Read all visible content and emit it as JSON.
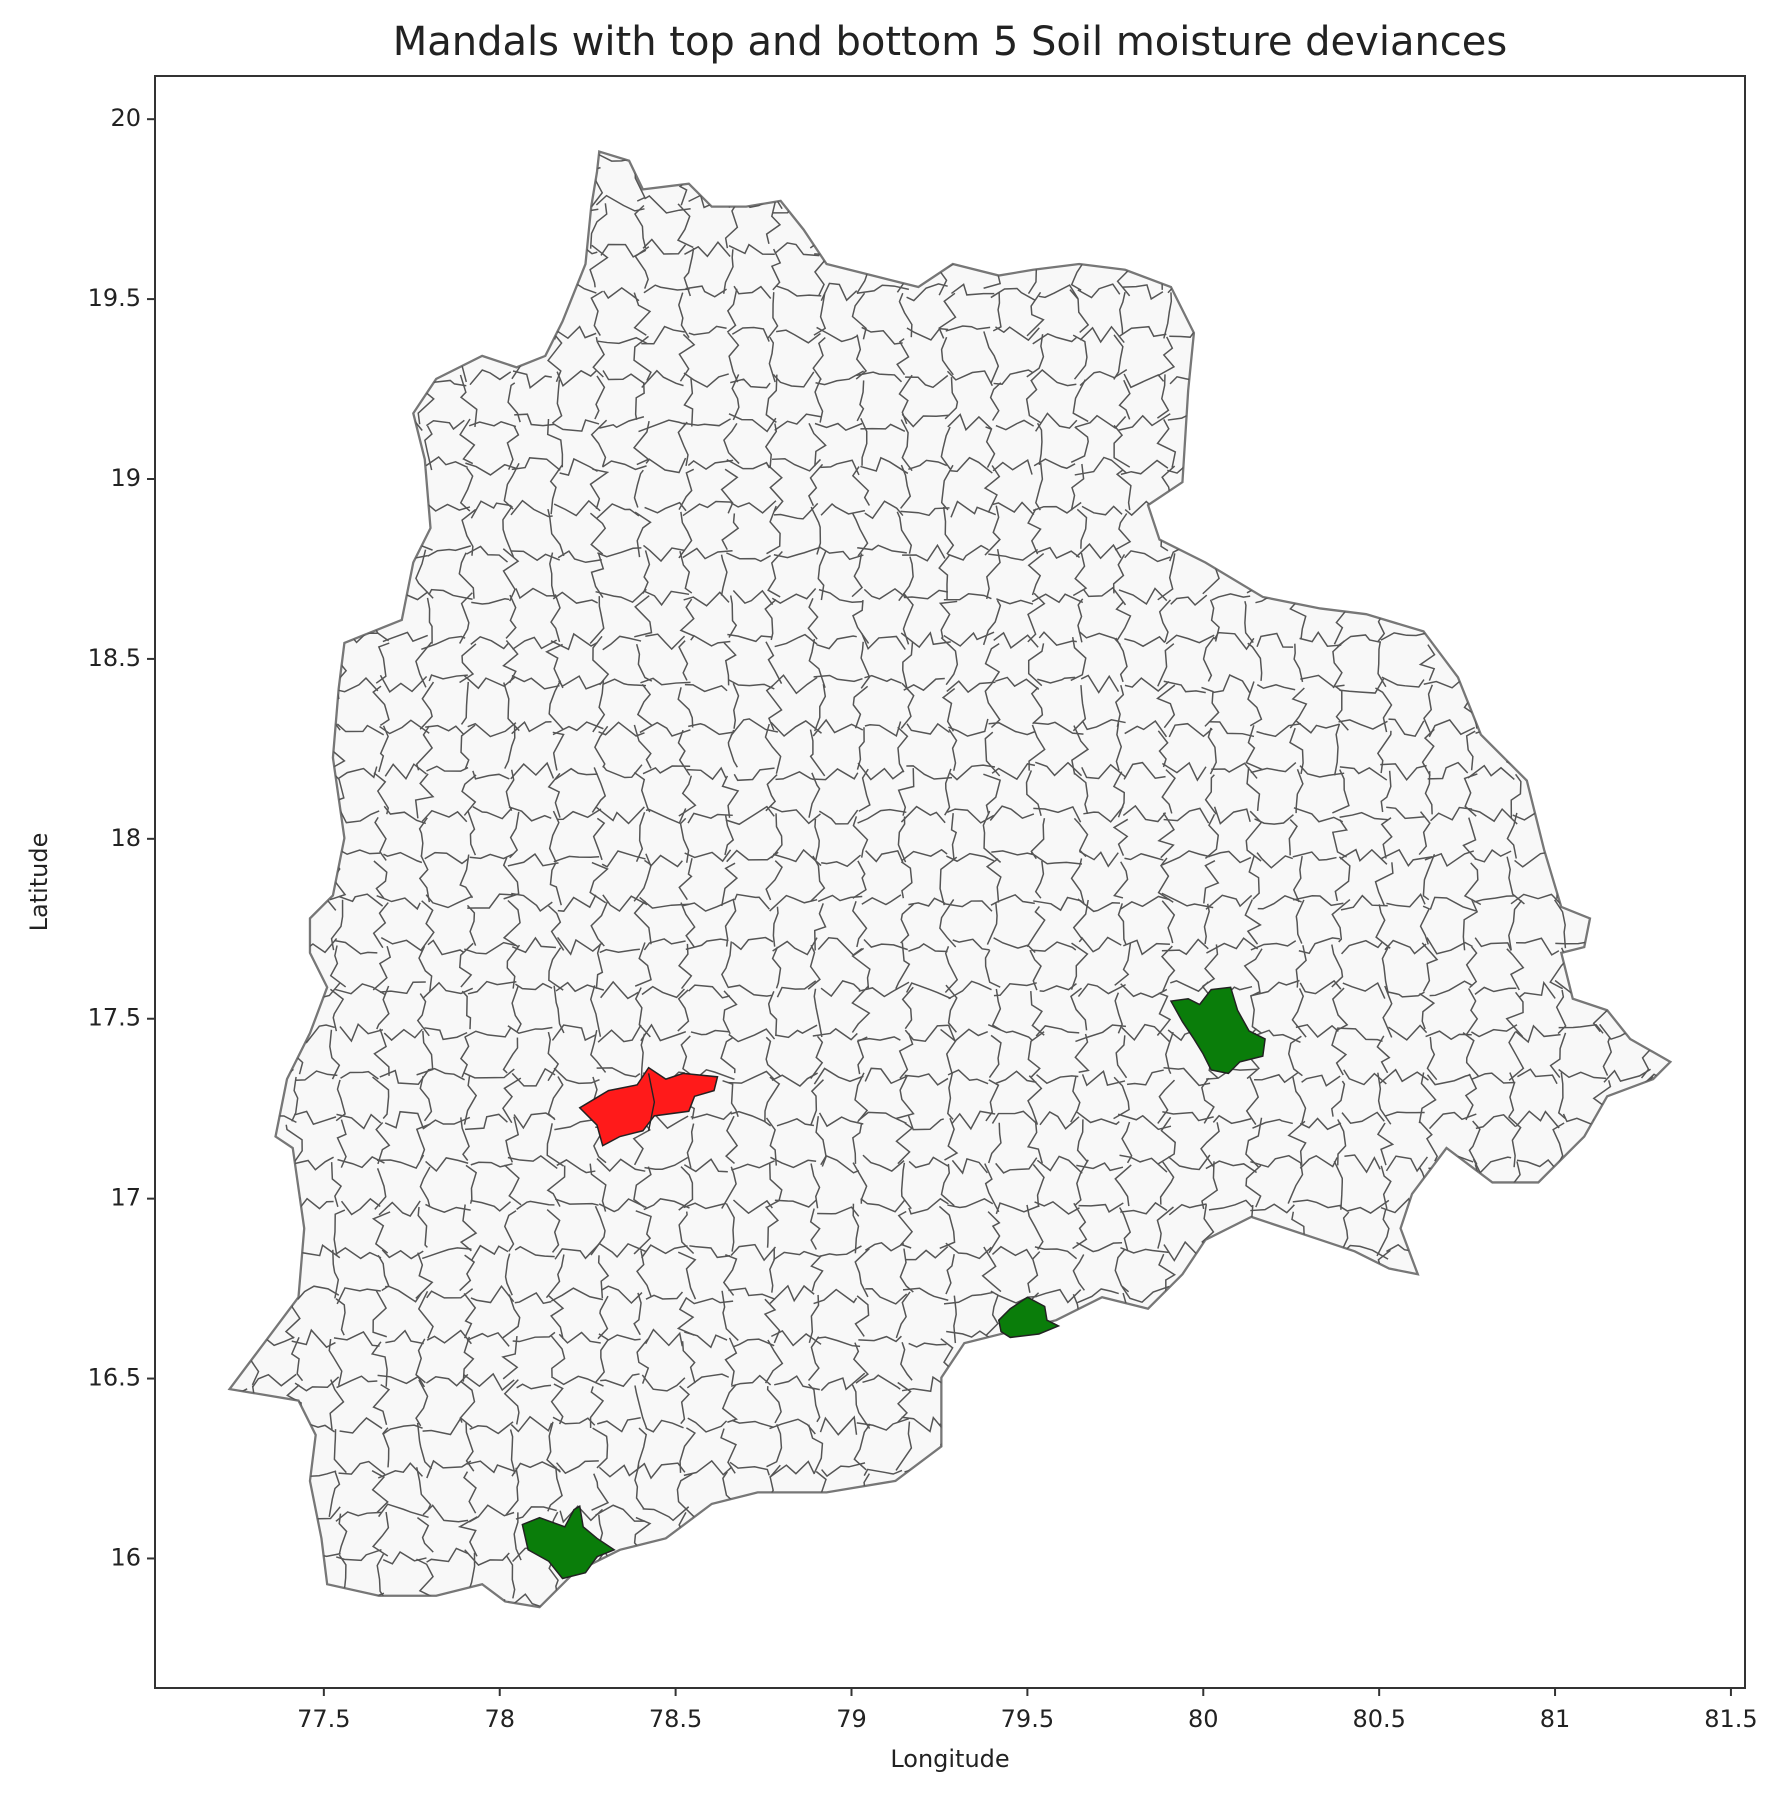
{
  "chart_data": {
    "type": "map",
    "title": "Mandals with top and bottom 5 Soil moisture deviances",
    "x_label": "Longitude",
    "y_label": "Latitude",
    "xlim": [
      77.02,
      81.54
    ],
    "ylim": [
      15.64,
      20.12
    ],
    "xticks": [
      77.5,
      78.0,
      78.5,
      79.0,
      79.5,
      80.0,
      80.5,
      81.0,
      81.5
    ],
    "yticks": [
      16.0,
      16.5,
      17.0,
      17.5,
      18.0,
      18.5,
      19.0,
      19.5,
      20.0
    ]
  }
}
